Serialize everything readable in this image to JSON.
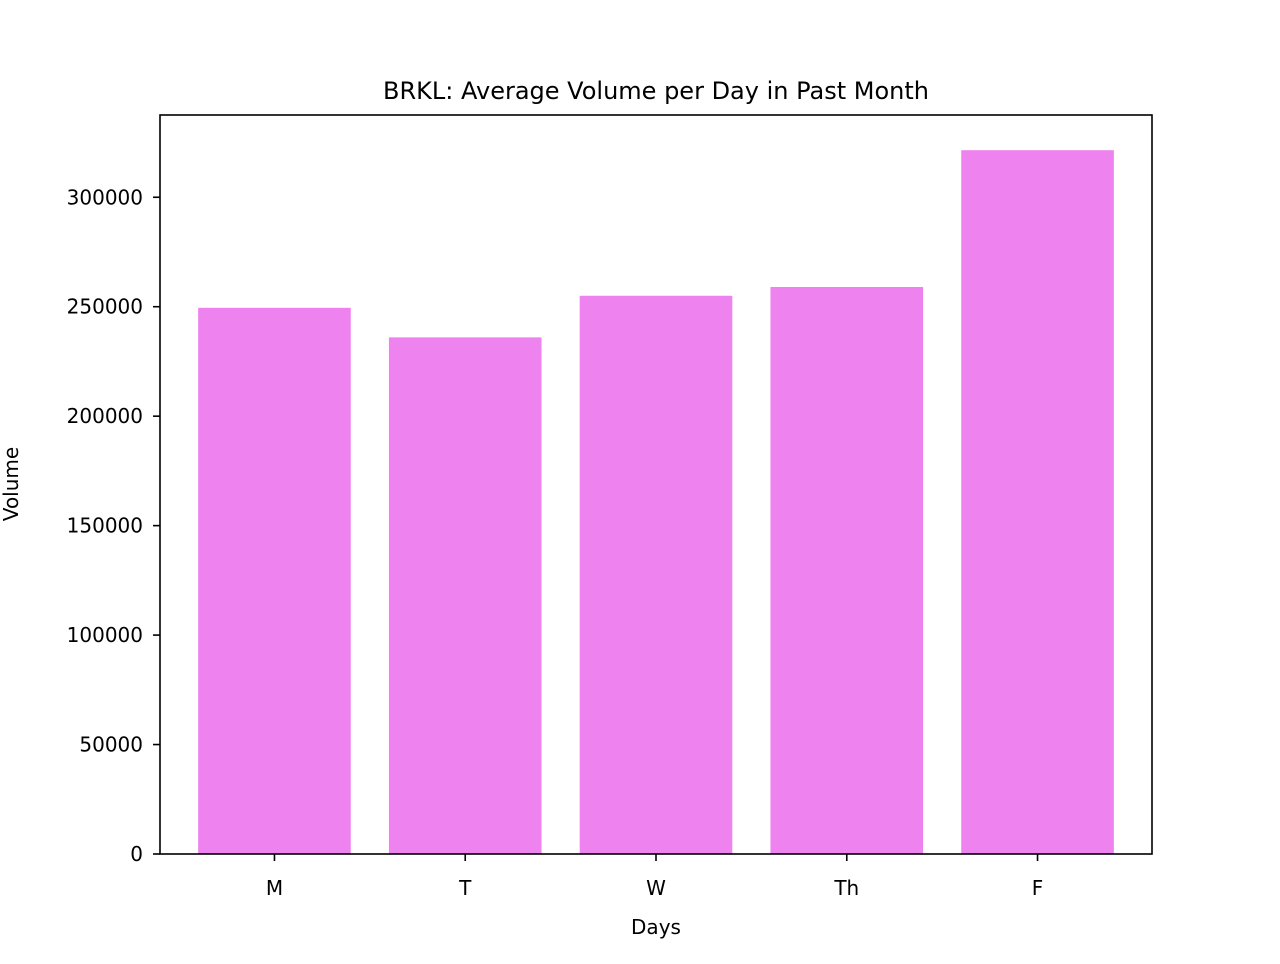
{
  "chart_data": {
    "type": "bar",
    "title": "BRKL: Average Volume per Day in Past Month",
    "xlabel": "Days",
    "ylabel": "Volume",
    "categories": [
      "M",
      "T",
      "W",
      "Th",
      "F"
    ],
    "values": [
      249500,
      236000,
      255000,
      259000,
      321500
    ],
    "ylim": [
      0,
      337575
    ],
    "yticks": [
      0,
      50000,
      100000,
      150000,
      200000,
      250000,
      300000
    ],
    "ytick_labels": [
      "0",
      "50000",
      "100000",
      "150000",
      "200000",
      "250000",
      "300000"
    ],
    "bar_color": "#EE82EE",
    "grid": false,
    "legend": "none"
  }
}
